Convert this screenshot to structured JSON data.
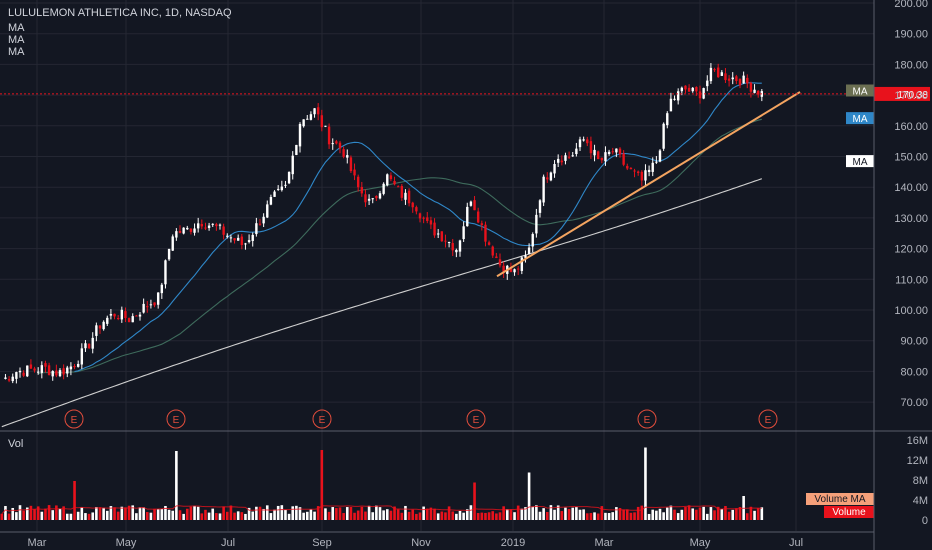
{
  "header": {
    "title": "LULULEMON ATHLETICA INC, 1D, NASDAQ",
    "ma_labels": [
      "MA",
      "MA",
      "MA"
    ],
    "vol_label": "Vol"
  },
  "colors": {
    "background": "#131722",
    "up": "#ffffff",
    "down": "#e8121c",
    "ma_fast": "#2f87c8",
    "ma_mid": "#3e6b5c",
    "ma_slow": "#cfcfcf",
    "trendline": "#f4a460",
    "last_price": "#e8121c",
    "earnings": "#e24d3c",
    "volume_ma": "#f5a07a"
  },
  "chart_data": [
    {
      "type": "candlestick",
      "title": "LULULEMON ATHLETICA INC, 1D, NASDAQ",
      "x_axis": {
        "ticks": [
          "Mar",
          "May",
          "Jul",
          "Sep",
          "Nov",
          "2019",
          "Mar",
          "May",
          "Jul"
        ],
        "start_month": "2018-02"
      },
      "y_axis": {
        "range": [
          60,
          200
        ],
        "ticks": [
          70,
          80,
          90,
          100,
          110,
          120,
          130,
          140,
          150,
          160,
          170,
          180,
          190,
          200
        ],
        "tick_labels": [
          "70.00",
          "80.00",
          "90.00",
          "100.00",
          "110.00",
          "120.00",
          "130.00",
          "140.00",
          "150.00",
          "160.00",
          "170.00",
          "180.00",
          "190.00",
          "200.00"
        ]
      },
      "price_path": [
        [
          0,
          77
        ],
        [
          1,
          80
        ],
        [
          2,
          80.5
        ],
        [
          3,
          81
        ],
        [
          4,
          79.5
        ],
        [
          5,
          82
        ],
        [
          6,
          88
        ],
        [
          7,
          96
        ],
        [
          8,
          99
        ],
        [
          9,
          97
        ],
        [
          10,
          101
        ],
        [
          11,
          104
        ],
        [
          12,
          125
        ],
        [
          13,
          126
        ],
        [
          14,
          129
        ],
        [
          15,
          127
        ],
        [
          16,
          124
        ],
        [
          17,
          121
        ],
        [
          18,
          128
        ],
        [
          19,
          136
        ],
        [
          20,
          140
        ],
        [
          21,
          162
        ],
        [
          22,
          165
        ],
        [
          23,
          156
        ],
        [
          24,
          152
        ],
        [
          25,
          140
        ],
        [
          26,
          134
        ],
        [
          27,
          144
        ],
        [
          28,
          138
        ],
        [
          29,
          135
        ],
        [
          30,
          127
        ],
        [
          31,
          124
        ],
        [
          32,
          120
        ],
        [
          33,
          137
        ],
        [
          34,
          124
        ],
        [
          35,
          115
        ],
        [
          36,
          112
        ],
        [
          37,
          118
        ],
        [
          38,
          141
        ],
        [
          39,
          150
        ],
        [
          40,
          150
        ],
        [
          41,
          156
        ],
        [
          42,
          148
        ],
        [
          43,
          152
        ],
        [
          44,
          146
        ],
        [
          45,
          142
        ],
        [
          46,
          148
        ],
        [
          47,
          168
        ],
        [
          48,
          172
        ],
        [
          49,
          170
        ],
        [
          50,
          178
        ],
        [
          51,
          176
        ],
        [
          52,
          175
        ],
        [
          53,
          172
        ],
        [
          54,
          169
        ],
        [
          55,
          164
        ],
        [
          56,
          172
        ]
      ],
      "earnings_markers": {
        "label": "E",
        "count": 6
      },
      "moving_averages": [
        "MA",
        "MA",
        "MA"
      ],
      "ma_tags": [
        "MA",
        "MA",
        "MA"
      ],
      "trendline": {
        "from": [
          "2018-12-24",
          111
        ],
        "to": [
          "2019-06-30",
          171
        ]
      },
      "last_price": 170.38,
      "last_price_label": "170.38"
    },
    {
      "type": "bar",
      "title": "Vol",
      "y_axis": {
        "range": [
          0,
          16
        ],
        "ticks": [
          0,
          4,
          8,
          12,
          16
        ],
        "tick_labels": [
          "0",
          "4M",
          "8M",
          "12M",
          "16M"
        ]
      },
      "spikes_millions": [
        {
          "date": "2018-03-28",
          "value": 7.8
        },
        {
          "date": "2018-06-01",
          "value": 13.8
        },
        {
          "date": "2018-08-30",
          "value": 14.0
        },
        {
          "date": "2018-12-06",
          "value": 7.5
        },
        {
          "date": "2019-01-10",
          "value": 9.5
        },
        {
          "date": "2019-03-28",
          "value": 14.5
        },
        {
          "date": "2019-06-13",
          "value": 4.8
        }
      ],
      "legend": {
        "volume_ma": "Volume MA",
        "volume": "Volume"
      }
    }
  ]
}
